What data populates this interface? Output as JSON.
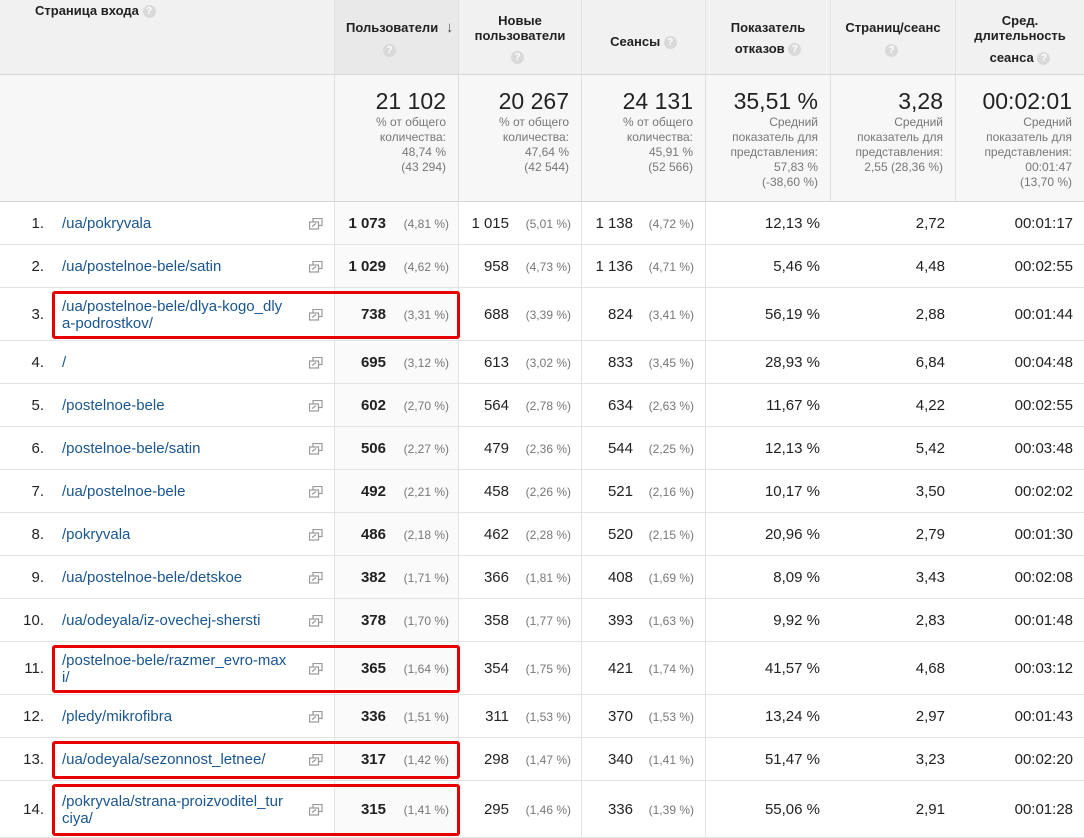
{
  "headers": {
    "page": "Страница входа",
    "users": "Пользователи",
    "new_users_line1": "Новые",
    "new_users_line2": "пользователи",
    "sessions": "Сеансы",
    "bounce_line1": "Показатель",
    "bounce_line2": "отказов",
    "pages_per_session": "Страниц/сеанс",
    "avg_line1": "Сред.",
    "avg_line2": "длительность",
    "avg_line3": "сеанса",
    "help_glyph": "?",
    "sort_glyph": "↓"
  },
  "summary": {
    "users": {
      "value": "21 102",
      "l1": "% от общего",
      "l2": "количества:",
      "l3": "48,74 %",
      "l4": "(43 294)"
    },
    "new_users": {
      "value": "20 267",
      "l1": "% от общего",
      "l2": "количества:",
      "l3": "47,64 %",
      "l4": "(42 544)"
    },
    "sessions": {
      "value": "24 131",
      "l1": "% от общего",
      "l2": "количества:",
      "l3": "45,91 %",
      "l4": "(52 566)"
    },
    "bounce": {
      "value": "35,51 %",
      "l1": "Средний",
      "l2": "показатель для",
      "l3": "представления:",
      "l4": "57,83 %",
      "l5": "(-38,60 %)"
    },
    "pps": {
      "value": "3,28",
      "l1": "Средний",
      "l2": "показатель для",
      "l3": "представления:",
      "l4": "2,55 (28,36 %)"
    },
    "avg": {
      "value": "00:02:01",
      "l1": "Средний",
      "l2": "показатель для",
      "l3": "представления:",
      "l4": "00:01:47",
      "l5": "(13,70 %)"
    }
  },
  "rows": [
    {
      "num": "1.",
      "page_l1": "/ua/pokryvala",
      "page_l2": "",
      "users": "1 073",
      "users_pct": "(4,81 %)",
      "new": "1 015",
      "new_pct": "(5,01 %)",
      "sess": "1 138",
      "sess_pct": "(4,72 %)",
      "bounce": "12,13 %",
      "pps": "2,72",
      "avg": "00:01:17"
    },
    {
      "num": "2.",
      "page_l1": "/ua/postelnoe-bele/satin",
      "page_l2": "",
      "users": "1 029",
      "users_pct": "(4,62 %)",
      "new": "958",
      "new_pct": "(4,73 %)",
      "sess": "1 136",
      "sess_pct": "(4,71 %)",
      "bounce": "5,46 %",
      "pps": "4,48",
      "avg": "00:02:55"
    },
    {
      "num": "3.",
      "page_l1": "/ua/postelnoe-bele/dlya-kogo_dly",
      "page_l2": "a-podrostkov/",
      "users": "738",
      "users_pct": "(3,31 %)",
      "new": "688",
      "new_pct": "(3,39 %)",
      "sess": "824",
      "sess_pct": "(3,41 %)",
      "bounce": "56,19 %",
      "pps": "2,88",
      "avg": "00:01:44"
    },
    {
      "num": "4.",
      "page_l1": "/",
      "page_l2": "",
      "users": "695",
      "users_pct": "(3,12 %)",
      "new": "613",
      "new_pct": "(3,02 %)",
      "sess": "833",
      "sess_pct": "(3,45 %)",
      "bounce": "28,93 %",
      "pps": "6,84",
      "avg": "00:04:48"
    },
    {
      "num": "5.",
      "page_l1": "/postelnoe-bele",
      "page_l2": "",
      "users": "602",
      "users_pct": "(2,70 %)",
      "new": "564",
      "new_pct": "(2,78 %)",
      "sess": "634",
      "sess_pct": "(2,63 %)",
      "bounce": "11,67 %",
      "pps": "4,22",
      "avg": "00:02:55"
    },
    {
      "num": "6.",
      "page_l1": "/postelnoe-bele/satin",
      "page_l2": "",
      "users": "506",
      "users_pct": "(2,27 %)",
      "new": "479",
      "new_pct": "(2,36 %)",
      "sess": "544",
      "sess_pct": "(2,25 %)",
      "bounce": "12,13 %",
      "pps": "5,42",
      "avg": "00:03:48"
    },
    {
      "num": "7.",
      "page_l1": "/ua/postelnoe-bele",
      "page_l2": "",
      "users": "492",
      "users_pct": "(2,21 %)",
      "new": "458",
      "new_pct": "(2,26 %)",
      "sess": "521",
      "sess_pct": "(2,16 %)",
      "bounce": "10,17 %",
      "pps": "3,50",
      "avg": "00:02:02"
    },
    {
      "num": "8.",
      "page_l1": "/pokryvala",
      "page_l2": "",
      "users": "486",
      "users_pct": "(2,18 %)",
      "new": "462",
      "new_pct": "(2,28 %)",
      "sess": "520",
      "sess_pct": "(2,15 %)",
      "bounce": "20,96 %",
      "pps": "2,79",
      "avg": "00:01:30"
    },
    {
      "num": "9.",
      "page_l1": "/ua/postelnoe-bele/detskoe",
      "page_l2": "",
      "users": "382",
      "users_pct": "(1,71 %)",
      "new": "366",
      "new_pct": "(1,81 %)",
      "sess": "408",
      "sess_pct": "(1,69 %)",
      "bounce": "8,09 %",
      "pps": "3,43",
      "avg": "00:02:08"
    },
    {
      "num": "10.",
      "page_l1": "/ua/odeyala/iz-ovechej-shersti",
      "page_l2": "",
      "users": "378",
      "users_pct": "(1,70 %)",
      "new": "358",
      "new_pct": "(1,77 %)",
      "sess": "393",
      "sess_pct": "(1,63 %)",
      "bounce": "9,92 %",
      "pps": "2,83",
      "avg": "00:01:48"
    },
    {
      "num": "11.",
      "page_l1": "/postelnoe-bele/razmer_evro-max",
      "page_l2": "i/",
      "users": "365",
      "users_pct": "(1,64 %)",
      "new": "354",
      "new_pct": "(1,75 %)",
      "sess": "421",
      "sess_pct": "(1,74 %)",
      "bounce": "41,57 %",
      "pps": "4,68",
      "avg": "00:03:12"
    },
    {
      "num": "12.",
      "page_l1": "/pledy/mikrofibra",
      "page_l2": "",
      "users": "336",
      "users_pct": "(1,51 %)",
      "new": "311",
      "new_pct": "(1,53 %)",
      "sess": "370",
      "sess_pct": "(1,53 %)",
      "bounce": "13,24 %",
      "pps": "2,97",
      "avg": "00:01:43"
    },
    {
      "num": "13.",
      "page_l1": "/ua/odeyala/sezonnost_letnee/",
      "page_l2": "",
      "users": "317",
      "users_pct": "(1,42 %)",
      "new": "298",
      "new_pct": "(1,47 %)",
      "sess": "340",
      "sess_pct": "(1,41 %)",
      "bounce": "51,47 %",
      "pps": "3,23",
      "avg": "00:02:20"
    },
    {
      "num": "14.",
      "page_l1": "/pokryvala/strana-proizvoditel_tur",
      "page_l2": "ciya/",
      "users": "315",
      "users_pct": "(1,41 %)",
      "new": "295",
      "new_pct": "(1,46 %)",
      "sess": "336",
      "sess_pct": "(1,39 %)",
      "bounce": "55,06 %",
      "pps": "2,91",
      "avg": "00:01:28"
    }
  ],
  "highlighted_rows": [
    2,
    10,
    12,
    13
  ],
  "highlight_color": "#e60000",
  "link_color": "#1a5590",
  "icons": {
    "help": "question-circle-icon",
    "sort": "sort-desc-arrow-icon",
    "external": "open-in-new-window-icon"
  }
}
